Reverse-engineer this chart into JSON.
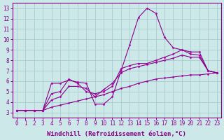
{
  "background_color": "#cce8e8",
  "grid_color": "#aacccc",
  "line_color": "#880088",
  "marker_color": "#aa00aa",
  "xlabel": "Windchill (Refroidissement éolien,°C)",
  "xlabel_fontsize": 6.5,
  "ylabel_ticks": [
    3,
    4,
    5,
    6,
    7,
    8,
    9,
    10,
    11,
    12,
    13
  ],
  "xlabel_ticks": [
    0,
    1,
    2,
    3,
    4,
    5,
    6,
    7,
    8,
    9,
    10,
    11,
    12,
    13,
    14,
    15,
    16,
    17,
    18,
    19,
    20,
    21,
    22,
    23
  ],
  "xlim": [
    -0.5,
    23.5
  ],
  "ylim": [
    2.5,
    13.5
  ],
  "lines": [
    {
      "x": [
        0,
        1,
        2,
        3,
        4,
        5,
        6,
        7,
        8,
        9,
        10,
        11,
        12,
        13,
        14,
        15,
        16,
        17,
        18,
        19,
        20,
        21,
        22,
        23
      ],
      "y": [
        3.2,
        3.2,
        3.2,
        3.2,
        5.8,
        5.8,
        6.1,
        5.9,
        5.8,
        3.8,
        3.8,
        4.5,
        7.0,
        9.5,
        12.1,
        13.0,
        12.5,
        10.2,
        9.2,
        9.0,
        8.6,
        8.5,
        7.0,
        6.8
      ]
    },
    {
      "x": [
        0,
        1,
        2,
        3,
        4,
        5,
        6,
        7,
        8,
        9,
        10,
        11,
        12,
        13,
        14,
        15,
        16,
        17,
        18,
        19,
        20,
        21,
        22,
        23
      ],
      "y": [
        3.2,
        3.2,
        3.2,
        3.2,
        4.8,
        5.0,
        6.2,
        5.8,
        5.0,
        4.8,
        5.0,
        5.5,
        7.2,
        7.5,
        7.7,
        7.7,
        8.0,
        8.3,
        8.6,
        9.0,
        8.8,
        8.8,
        7.0,
        6.8
      ]
    },
    {
      "x": [
        0,
        1,
        2,
        3,
        4,
        5,
        6,
        7,
        8,
        9,
        10,
        11,
        12,
        13,
        14,
        15,
        16,
        17,
        18,
        19,
        20,
        21,
        22,
        23
      ],
      "y": [
        3.2,
        3.2,
        3.2,
        3.2,
        4.2,
        4.5,
        5.5,
        5.5,
        5.3,
        4.5,
        5.2,
        5.8,
        6.8,
        7.2,
        7.4,
        7.6,
        7.8,
        8.0,
        8.2,
        8.5,
        8.3,
        8.3,
        7.0,
        6.8
      ]
    },
    {
      "x": [
        0,
        1,
        2,
        3,
        4,
        5,
        6,
        7,
        8,
        9,
        10,
        11,
        12,
        13,
        14,
        15,
        16,
        17,
        18,
        19,
        20,
        21,
        22,
        23
      ],
      "y": [
        3.2,
        3.2,
        3.2,
        3.2,
        3.5,
        3.7,
        3.9,
        4.1,
        4.3,
        4.5,
        4.7,
        5.0,
        5.3,
        5.5,
        5.8,
        6.0,
        6.2,
        6.3,
        6.4,
        6.5,
        6.6,
        6.6,
        6.7,
        6.8
      ]
    }
  ]
}
